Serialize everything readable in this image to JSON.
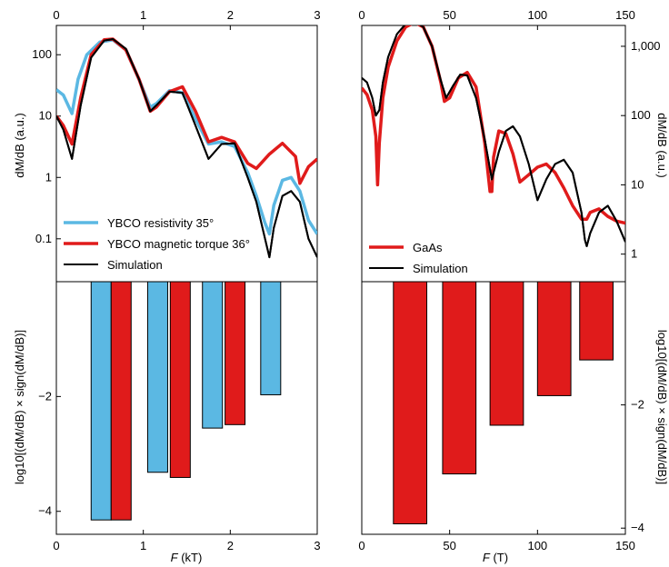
{
  "colors": {
    "resistivity": "#5bb8e3",
    "torque": "#e01b1b",
    "simulation": "#000000",
    "gaas": "#e01b1b"
  },
  "left": {
    "top_axis_ticks": [
      "0",
      "1",
      "2",
      "3"
    ],
    "bottom_axis_ticks": [
      "0",
      "1",
      "2",
      "3"
    ],
    "log_ticks": [
      "0.1",
      "1",
      "10",
      "100"
    ],
    "bar_ticks": [
      "−2",
      "−4"
    ],
    "xlabel_var": "F",
    "xlabel_unit": " (kT)",
    "ylabel_top": "dM/dB (a.u.)",
    "ylabel_bottom": "log10[(dM/dB) × sign(dM/dB)]",
    "legend": [
      "YBCO resistivity 35°",
      "YBCO magnetic torque 36°",
      "Simulation"
    ]
  },
  "right": {
    "top_axis_ticks": [
      "0",
      "50",
      "100",
      "150"
    ],
    "bottom_axis_ticks": [
      "0",
      "50",
      "100",
      "150"
    ],
    "log_ticks": [
      "1",
      "10",
      "100",
      "1,000"
    ],
    "bar_ticks": [
      "−2",
      "−4"
    ],
    "xlabel_var": "F",
    "xlabel_unit": " (T)",
    "ylabel_top": "dM/dB (a.u.)",
    "ylabel_bottom": "log10[(dM/dB) × sign(dM/dB)]",
    "legend": [
      "GaAs",
      "Simulation"
    ]
  },
  "chart_data": [
    {
      "type": "line",
      "panel": "left-top",
      "xlabel": "F (kT)",
      "ylabel": "dM/dB (a.u.)",
      "xlim": [
        0,
        3
      ],
      "ylim": [
        0.02,
        300
      ],
      "yscale": "log",
      "legend_position": "bottom-left",
      "series": [
        {
          "name": "YBCO resistivity 35°",
          "color": "#5bb8e3",
          "x": [
            0,
            0.08,
            0.18,
            0.25,
            0.35,
            0.5,
            0.65,
            0.8,
            0.95,
            1.08,
            1.15,
            1.3,
            1.45,
            1.6,
            1.75,
            1.9,
            2.05,
            2.2,
            2.3,
            2.4,
            2.45,
            2.5,
            2.6,
            2.7,
            2.8,
            2.9,
            3.0
          ],
          "y": [
            27,
            22,
            11,
            40,
            100,
            160,
            175,
            120,
            40,
            14,
            16,
            26,
            24,
            9,
            3.5,
            3.8,
            3.2,
            1.2,
            0.5,
            0.18,
            0.12,
            0.35,
            0.9,
            1.0,
            0.6,
            0.2,
            0.12
          ]
        },
        {
          "name": "YBCO magnetic torque 36°",
          "color": "#e01b1b",
          "x": [
            0,
            0.08,
            0.18,
            0.28,
            0.4,
            0.55,
            0.65,
            0.8,
            0.95,
            1.08,
            1.15,
            1.3,
            1.45,
            1.6,
            1.75,
            1.9,
            2.05,
            2.2,
            2.3,
            2.45,
            2.6,
            2.75,
            2.8,
            2.9,
            3.0
          ],
          "y": [
            10,
            7,
            3.5,
            20,
            100,
            175,
            180,
            120,
            40,
            12,
            14,
            25,
            30,
            12,
            3.8,
            4.5,
            3.8,
            1.7,
            1.4,
            2.4,
            3.6,
            2.2,
            0.8,
            1.5,
            2.0
          ]
        },
        {
          "name": "Simulation",
          "color": "#000000",
          "x": [
            0,
            0.08,
            0.18,
            0.28,
            0.4,
            0.55,
            0.65,
            0.8,
            0.95,
            1.08,
            1.15,
            1.3,
            1.45,
            1.6,
            1.75,
            1.9,
            2.05,
            2.2,
            2.3,
            2.4,
            2.45,
            2.5,
            2.6,
            2.7,
            2.8,
            2.9,
            3.0
          ],
          "y": [
            10,
            6,
            2,
            15,
            90,
            170,
            180,
            125,
            40,
            12,
            15,
            25,
            24,
            7,
            2.0,
            3.5,
            3.6,
            1.0,
            0.4,
            0.1,
            0.05,
            0.15,
            0.5,
            0.6,
            0.4,
            0.1,
            0.05
          ]
        }
      ]
    },
    {
      "type": "bar",
      "panel": "left-bottom",
      "xlabel": "F (kT)",
      "ylabel": "log10[(dM/dB) × sign(dM/dB)]",
      "xlim": [
        0,
        3
      ],
      "ylim": [
        -4.4,
        0
      ],
      "series": [
        {
          "name": "YBCO resistivity 35°",
          "color": "#5bb8e3",
          "bars": [
            {
              "x0": 0.4,
              "x1": 0.63,
              "value": -4.15
            },
            {
              "x0": 1.05,
              "x1": 1.28,
              "value": -3.32
            },
            {
              "x0": 1.68,
              "x1": 1.91,
              "value": -2.55
            },
            {
              "x0": 2.35,
              "x1": 2.58,
              "value": -1.97
            }
          ]
        },
        {
          "name": "YBCO magnetic torque 36°",
          "color": "#e01b1b",
          "bars": [
            {
              "x0": 0.63,
              "x1": 0.86,
              "value": -4.15
            },
            {
              "x0": 1.31,
              "x1": 1.54,
              "value": -3.41
            },
            {
              "x0": 1.94,
              "x1": 2.17,
              "value": -2.49
            }
          ]
        }
      ]
    },
    {
      "type": "line",
      "panel": "right-top",
      "xlabel": "F (T)",
      "ylabel": "dM/dB (a.u.)",
      "xlim": [
        0,
        150
      ],
      "ylim": [
        0.4,
        2000
      ],
      "yscale": "log",
      "legend_position": "bottom-left",
      "series": [
        {
          "name": "GaAs",
          "color": "#e01b1b",
          "x": [
            0,
            3,
            6,
            8,
            9,
            10,
            12,
            15,
            20,
            25,
            30,
            35,
            40,
            45,
            47,
            50,
            55,
            60,
            65,
            70,
            73,
            74,
            75,
            78,
            82,
            86,
            90,
            95,
            100,
            105,
            110,
            115,
            120,
            125,
            128,
            130,
            135,
            140,
            145,
            150
          ],
          "y": [
            250,
            200,
            120,
            50,
            10,
            40,
            180,
            500,
            1200,
            1900,
            2200,
            1900,
            1000,
            300,
            160,
            180,
            350,
            420,
            260,
            40,
            8,
            8,
            25,
            60,
            55,
            28,
            11,
            14,
            18,
            20,
            15,
            9,
            5,
            3.2,
            3.2,
            4,
            4.5,
            3.5,
            3,
            2.8
          ]
        },
        {
          "name": "Simulation",
          "color": "#000000",
          "x": [
            0,
            3,
            6,
            8,
            10,
            12,
            15,
            20,
            25,
            30,
            35,
            40,
            45,
            48,
            52,
            56,
            60,
            65,
            70,
            74,
            78,
            82,
            86,
            90,
            95,
            100,
            105,
            110,
            115,
            120,
            125,
            127,
            128,
            130,
            135,
            140,
            145,
            150
          ],
          "y": [
            350,
            300,
            180,
            100,
            120,
            300,
            700,
            1500,
            2100,
            2300,
            1900,
            1000,
            320,
            180,
            270,
            390,
            380,
            180,
            45,
            12,
            30,
            60,
            70,
            50,
            20,
            6,
            12,
            20,
            23,
            15,
            4,
            1.6,
            1.3,
            2,
            4,
            5,
            3,
            1.5
          ]
        }
      ]
    },
    {
      "type": "bar",
      "panel": "right-bottom",
      "xlabel": "F (T)",
      "ylabel": "log10[(dM/dB) × sign(dM/dB)]",
      "xlim": [
        0,
        150
      ],
      "ylim": [
        -4.1,
        0
      ],
      "series": [
        {
          "name": "GaAs",
          "color": "#e01b1b",
          "bars": [
            {
              "x0": 18,
              "x1": 37,
              "value": -3.93
            },
            {
              "x0": 46,
              "x1": 65,
              "value": -3.12
            },
            {
              "x0": 73,
              "x1": 92,
              "value": -2.33
            },
            {
              "x0": 100,
              "x1": 119,
              "value": -1.85
            },
            {
              "x0": 124,
              "x1": 143,
              "value": -1.27
            }
          ]
        }
      ]
    }
  ]
}
